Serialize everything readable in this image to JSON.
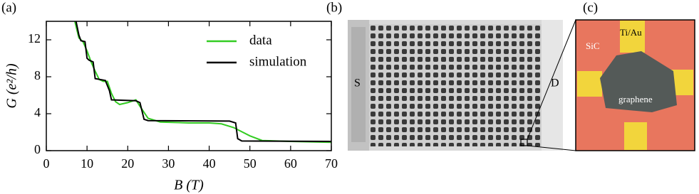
{
  "chart_data": {
    "type": "line",
    "panel_label": "(a)",
    "xlabel": "B (T)",
    "ylabel": "G (e²/h)",
    "xlim": [
      0,
      70
    ],
    "ylim": [
      0,
      14
    ],
    "xticks": [
      0,
      10,
      20,
      30,
      40,
      50,
      60,
      70
    ],
    "yticks": [
      0,
      4,
      8,
      12
    ],
    "legend": "upper right",
    "series": [
      {
        "name": "data",
        "color": "#33cc22",
        "x": [
          7,
          8,
          9,
          10,
          11,
          12,
          13,
          14,
          15,
          16,
          17,
          18,
          20,
          22,
          23,
          25,
          28,
          35,
          40,
          43,
          46,
          50,
          53,
          60,
          70
        ],
        "values": [
          14,
          12.2,
          11.8,
          10.8,
          9.6,
          8.6,
          7.7,
          7.5,
          7.5,
          6.2,
          5.3,
          5.0,
          5.2,
          5.5,
          4.8,
          3.5,
          3.1,
          3.0,
          3.0,
          2.9,
          2.5,
          1.6,
          1.1,
          1.0,
          0.9
        ]
      },
      {
        "name": "simulation",
        "color": "#000000",
        "x": [
          7.3,
          8,
          8.5,
          9.5,
          10,
          10.5,
          11.5,
          12,
          14.5,
          15.5,
          16,
          22,
          23,
          24,
          25,
          45,
          46.5,
          47,
          48,
          70
        ],
        "values": [
          14,
          12.5,
          11.9,
          11.8,
          10,
          9.8,
          9.6,
          7.8,
          7.6,
          6.5,
          5.5,
          5.4,
          5.2,
          3.4,
          3.25,
          3.2,
          3.0,
          1.3,
          1.05,
          1.0
        ]
      }
    ]
  },
  "panel_b": {
    "label": "(b)",
    "source": "S",
    "drain": "D"
  },
  "panel_c": {
    "label": "(c)",
    "substrate": "SiC",
    "contact": "Ti/Au",
    "material": "graphene"
  }
}
